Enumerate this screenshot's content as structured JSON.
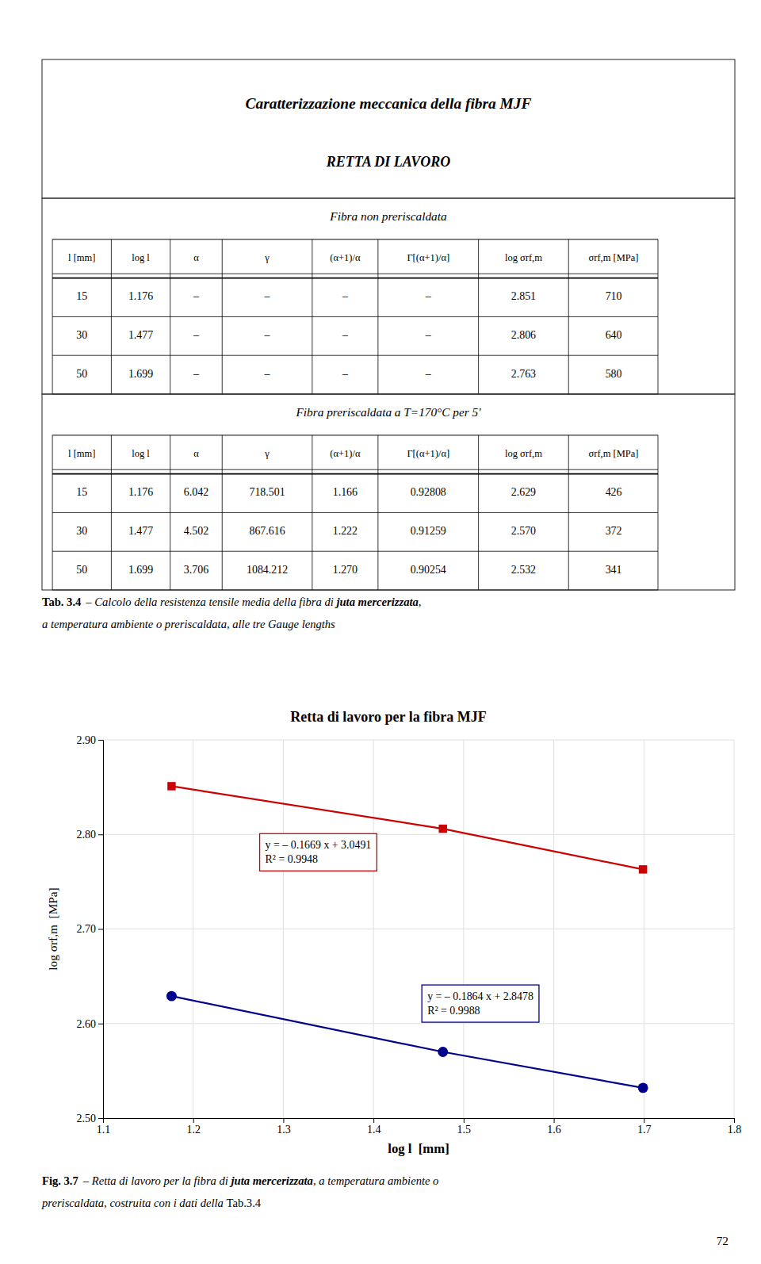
{
  "page_title": "Caratterizzazione meccanica della fibra MJF",
  "page_subtitle": "RETTA DI LAVORO",
  "table_headers": [
    "l [mm]",
    "log l",
    "α",
    "γ",
    "(α+1)/α",
    "Γ[(α+1)/α]",
    "log σrf,m",
    "σrf,m [MPa]"
  ],
  "tables": [
    {
      "title": "Fibra non preriscaldata",
      "rows": [
        [
          "15",
          "1.176",
          "–",
          "–",
          "–",
          "–",
          "2.851",
          "710"
        ],
        [
          "30",
          "1.477",
          "–",
          "–",
          "–",
          "–",
          "2.806",
          "640"
        ],
        [
          "50",
          "1.699",
          "–",
          "–",
          "–",
          "–",
          "2.763",
          "580"
        ]
      ]
    },
    {
      "title": "Fibra preriscaldata a T=170°C per 5′",
      "rows": [
        [
          "15",
          "1.176",
          "6.042",
          "718.501",
          "1.166",
          "0.92808",
          "2.629",
          "426"
        ],
        [
          "30",
          "1.477",
          "4.502",
          "867.616",
          "1.222",
          "0.91259",
          "2.570",
          "372"
        ],
        [
          "50",
          "1.699",
          "3.706",
          "1084.212",
          "1.270",
          "0.90254",
          "2.532",
          "341"
        ]
      ]
    }
  ],
  "table_caption": [
    [
      "Tab. 3.4",
      "– Calcolo della resistenza tensile media della fibra di ",
      "juta mercerizzata",
      ","
    ],
    [
      "a temperatura ambiente o preriscaldata, alle tre Gauge lengths"
    ]
  ],
  "figure_caption": [
    [
      "Fig. 3.7",
      "– Retta di lavoro per la fibra di ",
      "juta mercerizzata",
      ", a temperatura ambiente o"
    ],
    [
      "preriscaldata, costruita con i dati della ",
      "Tab.3.4"
    ]
  ],
  "page_number": "72",
  "chart_data": {
    "type": "line",
    "title": "Retta di lavoro per la fibra MJF",
    "xlabel": "log l  [mm]",
    "ylabel": "log σrf,m  [MPa]",
    "x": [
      1.176,
      1.477,
      1.699
    ],
    "series": [
      {
        "color": "#cc0000",
        "marker": "square",
        "values": [
          2.851,
          2.806,
          2.763
        ],
        "annotation": [
          "y = – 0.1669 x + 3.0491",
          "R² = 0.9948"
        ]
      },
      {
        "color": "#00008B",
        "marker": "circle",
        "values": [
          2.629,
          2.57,
          2.532
        ],
        "annotation": [
          "y = – 0.1864 x + 2.8478",
          "R² = 0.9988"
        ]
      }
    ],
    "xlim": [
      1.1,
      1.8
    ],
    "ylim": [
      2.5,
      2.9
    ],
    "xticks": [
      1.1,
      1.2,
      1.3,
      1.4,
      1.5,
      1.6,
      1.7,
      1.8
    ],
    "yticks": [
      {
        "value": 2.5,
        "label": "2.50"
      },
      {
        "value": 2.6,
        "label": "2.60"
      },
      {
        "value": 2.7,
        "label": "2.70"
      },
      {
        "value": 2.8,
        "label": "2.80"
      },
      {
        "value": 2.9,
        "label": "2.90"
      }
    ],
    "grid": true
  }
}
